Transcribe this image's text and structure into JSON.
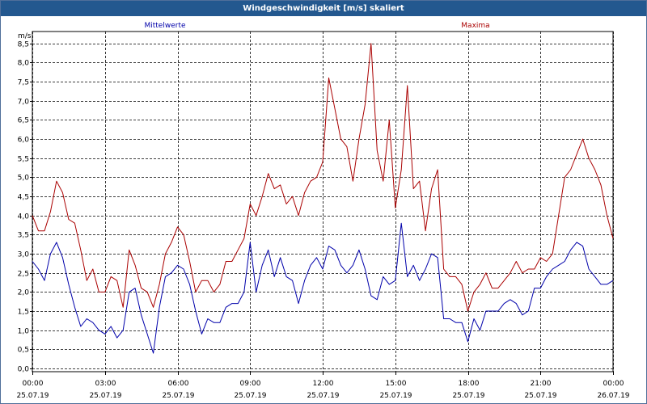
{
  "window": {
    "title": "Windgeschwindigkeit [m/s] skaliert"
  },
  "chart_data": {
    "type": "line",
    "title": "Windgeschwindigkeit [m/s] skaliert",
    "ylabel": "m/s",
    "ylim": [
      0.0,
      8.75
    ],
    "xlim_hours": [
      0,
      24
    ],
    "y_ticks": [
      "0,0",
      "0,5",
      "1,0",
      "1,5",
      "2,0",
      "2,5",
      "3,0",
      "3,5",
      "4,0",
      "4,5",
      "5,0",
      "5,5",
      "6,0",
      "6,5",
      "7,0",
      "7,5",
      "8,0",
      "8,5"
    ],
    "x_ticks": [
      {
        "time": "00:00",
        "date": "25.07.19"
      },
      {
        "time": "03:00",
        "date": "25.07.19"
      },
      {
        "time": "06:00",
        "date": "25.07.19"
      },
      {
        "time": "09:00",
        "date": "25.07.19"
      },
      {
        "time": "12:00",
        "date": "25.07.19"
      },
      {
        "time": "15:00",
        "date": "25.07.19"
      },
      {
        "time": "18:00",
        "date": "25.07.19"
      },
      {
        "time": "21:00",
        "date": "25.07.19"
      },
      {
        "time": "00:00",
        "date": "26.07.19"
      }
    ],
    "grid": true,
    "series": [
      {
        "name": "Mittelwerte",
        "color": "#0000aa",
        "x": [
          0,
          0.25,
          0.5,
          0.75,
          1,
          1.25,
          1.5,
          1.75,
          2,
          2.25,
          2.5,
          2.75,
          3,
          3.25,
          3.5,
          3.75,
          4,
          4.25,
          4.5,
          4.75,
          5,
          5.25,
          5.5,
          5.75,
          6,
          6.25,
          6.5,
          6.75,
          7,
          7.25,
          7.5,
          7.75,
          8,
          8.25,
          8.5,
          8.75,
          9,
          9.25,
          9.5,
          9.75,
          10,
          10.25,
          10.5,
          10.75,
          11,
          11.25,
          11.5,
          11.75,
          12,
          12.25,
          12.5,
          12.75,
          13,
          13.25,
          13.5,
          13.75,
          14,
          14.25,
          14.5,
          14.75,
          15,
          15.25,
          15.5,
          15.75,
          16,
          16.25,
          16.5,
          16.75,
          17,
          17.25,
          17.5,
          17.75,
          18,
          18.25,
          18.5,
          18.75,
          19,
          19.25,
          19.5,
          19.75,
          20,
          20.25,
          20.5,
          20.75,
          21,
          21.25,
          21.5,
          21.75,
          22,
          22.25,
          22.5,
          22.75,
          23,
          23.25,
          23.5,
          23.75,
          24
        ],
        "values": [
          2.8,
          2.6,
          2.3,
          3.0,
          3.3,
          2.9,
          2.2,
          1.6,
          1.1,
          1.3,
          1.2,
          1.0,
          0.9,
          1.1,
          0.8,
          1.0,
          2.0,
          2.1,
          1.4,
          0.9,
          0.4,
          1.6,
          2.4,
          2.5,
          2.7,
          2.6,
          2.2,
          1.5,
          0.9,
          1.3,
          1.2,
          1.2,
          1.6,
          1.7,
          1.7,
          2.0,
          3.3,
          2.0,
          2.7,
          3.1,
          2.4,
          2.9,
          2.4,
          2.3,
          1.7,
          2.3,
          2.7,
          2.9,
          2.6,
          3.2,
          3.1,
          2.7,
          2.5,
          2.7,
          3.1,
          2.6,
          1.9,
          1.8,
          2.4,
          2.2,
          2.3,
          3.8,
          2.4,
          2.7,
          2.3,
          2.6,
          3.0,
          2.9,
          1.3,
          1.3,
          1.2,
          1.2,
          0.7,
          1.3,
          1.0,
          1.5,
          1.5,
          1.5,
          1.7,
          1.8,
          1.7,
          1.4,
          1.5,
          2.1,
          2.1,
          2.4,
          2.6,
          2.7,
          2.8,
          3.1,
          3.3,
          3.2,
          2.6,
          2.4,
          2.2,
          2.2,
          2.3
        ]
      },
      {
        "name": "Maxima",
        "color": "#aa0000",
        "x": [
          0,
          0.25,
          0.5,
          0.75,
          1,
          1.25,
          1.5,
          1.75,
          2,
          2.25,
          2.5,
          2.75,
          3,
          3.25,
          3.5,
          3.75,
          4,
          4.25,
          4.5,
          4.75,
          5,
          5.25,
          5.5,
          5.75,
          6,
          6.25,
          6.5,
          6.75,
          7,
          7.25,
          7.5,
          7.75,
          8,
          8.25,
          8.5,
          8.75,
          9,
          9.25,
          9.5,
          9.75,
          10,
          10.25,
          10.5,
          10.75,
          11,
          11.25,
          11.5,
          11.75,
          12,
          12.25,
          12.5,
          12.75,
          13,
          13.25,
          13.5,
          13.75,
          14,
          14.25,
          14.5,
          14.75,
          15,
          15.25,
          15.5,
          15.75,
          16,
          16.25,
          16.5,
          16.75,
          17,
          17.25,
          17.5,
          17.75,
          18,
          18.25,
          18.5,
          18.75,
          19,
          19.25,
          19.5,
          19.75,
          20,
          20.25,
          20.5,
          20.75,
          21,
          21.25,
          21.5,
          21.75,
          22,
          22.25,
          22.5,
          22.75,
          23,
          23.25,
          23.5,
          23.75,
          24
        ],
        "values": [
          4.0,
          3.6,
          3.6,
          4.1,
          4.9,
          4.6,
          3.9,
          3.8,
          3.1,
          2.3,
          2.6,
          2.0,
          2.0,
          2.4,
          2.3,
          1.6,
          3.1,
          2.7,
          2.1,
          2.0,
          1.6,
          2.2,
          3.0,
          3.3,
          3.7,
          3.5,
          2.8,
          2.0,
          2.3,
          2.3,
          2.0,
          2.2,
          2.8,
          2.8,
          3.1,
          3.4,
          4.3,
          4.0,
          4.5,
          5.1,
          4.7,
          4.8,
          4.3,
          4.5,
          4.0,
          4.6,
          4.9,
          5.0,
          5.4,
          7.6,
          6.8,
          6.0,
          5.8,
          4.9,
          6.0,
          6.9,
          8.5,
          5.7,
          4.9,
          6.5,
          4.2,
          5.2,
          7.4,
          4.7,
          4.9,
          3.6,
          4.7,
          5.2,
          2.6,
          2.4,
          2.4,
          2.2,
          1.5,
          2.0,
          2.2,
          2.5,
          2.1,
          2.1,
          2.3,
          2.5,
          2.8,
          2.5,
          2.6,
          2.6,
          2.9,
          2.8,
          3.0,
          4.0,
          5.0,
          5.2,
          5.6,
          6.0,
          5.5,
          5.2,
          4.8,
          4.0,
          3.4
        ]
      }
    ]
  }
}
